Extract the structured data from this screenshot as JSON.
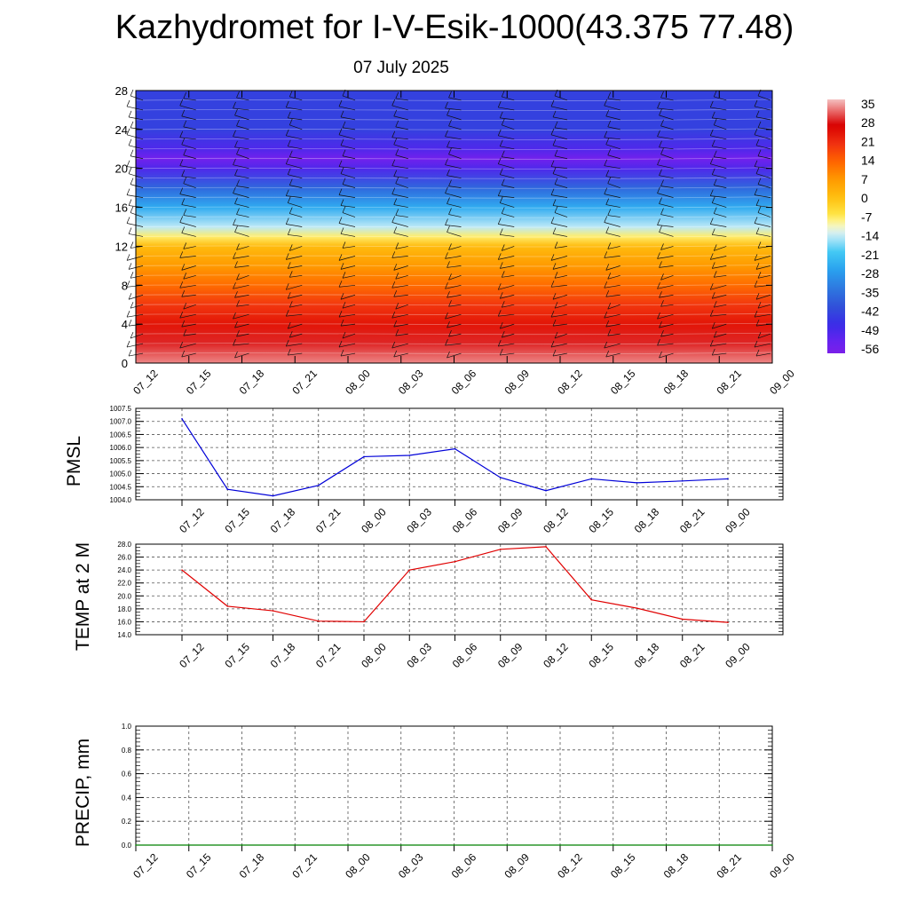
{
  "header": {
    "title": "Kazhydromet for I-V-Esik-1000(43.375 77.48)",
    "date": "07 July 2025"
  },
  "chart_data": [
    {
      "type": "heatmap",
      "yticks": [
        "0",
        "4",
        "8",
        "12",
        "16",
        "20",
        "24",
        "28"
      ],
      "ylim": [
        0,
        28
      ],
      "xticks": [
        "07_12",
        "07_15",
        "07_18",
        "07_21",
        "08_00",
        "08_03",
        "08_06",
        "08_09",
        "08_12",
        "08_15",
        "08_18",
        "08_21",
        "09_00"
      ],
      "colorbar": {
        "labels": [
          "35",
          "28",
          "21",
          "14",
          "7",
          "0",
          "-7",
          "-14",
          "-21",
          "-28",
          "-35",
          "-42",
          "-49",
          "-56"
        ],
        "range": [
          -60,
          38
        ]
      },
      "temperature_profile": {
        "height": [
          0,
          2,
          4,
          6,
          8,
          10,
          12,
          13,
          14,
          16,
          18,
          20,
          21,
          22,
          24,
          28
        ],
        "temp": [
          35,
          30,
          25,
          20,
          13,
          7,
          1,
          -8,
          -15,
          -26,
          -38,
          -52,
          -58,
          -52,
          -45,
          -45
        ]
      },
      "wind_barbs": true
    },
    {
      "type": "line",
      "ylabel": "PMSL",
      "yticks": [
        "1004.0",
        "1004.5",
        "1005.0",
        "1005.5",
        "1006.0",
        "1006.5",
        "1007.0",
        "1007.5"
      ],
      "ylim": [
        1004.0,
        1007.5
      ],
      "xticks": [
        "07_12",
        "07_15",
        "07_18",
        "07_21",
        "08_00",
        "08_03",
        "08_06",
        "08_09",
        "08_12",
        "08_15",
        "08_18",
        "08_21",
        "09_00"
      ],
      "values": [
        1007.1,
        1004.4,
        1004.15,
        1004.55,
        1005.65,
        1005.7,
        1005.95,
        1004.85,
        1004.35,
        1004.8,
        1004.65,
        1004.72,
        1004.8
      ],
      "color": "#0000d8",
      "grid": true
    },
    {
      "type": "line",
      "ylabel": "TEMP at 2 M",
      "yticks": [
        "14.0",
        "16.0",
        "18.0",
        "20.0",
        "22.0",
        "24.0",
        "26.0",
        "28.0"
      ],
      "ylim": [
        14.0,
        28.0
      ],
      "xticks": [
        "07_12",
        "07_15",
        "07_18",
        "07_21",
        "08_00",
        "08_03",
        "08_06",
        "08_09",
        "08_12",
        "08_15",
        "08_18",
        "08_21",
        "09_00"
      ],
      "x": [
        0,
        1,
        2,
        3,
        4,
        5,
        6,
        7,
        8,
        9,
        10,
        11,
        12
      ],
      "values": [
        24.0,
        18.4,
        17.7,
        16.1,
        16.0,
        24.0,
        25.3,
        27.2,
        27.6,
        19.4,
        18.1,
        16.4,
        15.9
      ],
      "color": "#e00000",
      "grid": true
    },
    {
      "type": "line",
      "ylabel": "PRECIP, mm",
      "yticks": [
        "0.0",
        "0.2",
        "0.4",
        "0.6",
        "0.8",
        "1.0"
      ],
      "ylim": [
        0.0,
        1.0
      ],
      "xticks": [
        "07_12",
        "07_15",
        "07_18",
        "07_21",
        "08_00",
        "08_03",
        "08_06",
        "08_09",
        "08_12",
        "08_15",
        "08_18",
        "08_21",
        "09_00"
      ],
      "values": [
        0,
        0,
        0,
        0,
        0,
        0,
        0,
        0,
        0,
        0,
        0,
        0,
        0
      ],
      "color": "#008000",
      "grid": true
    }
  ]
}
